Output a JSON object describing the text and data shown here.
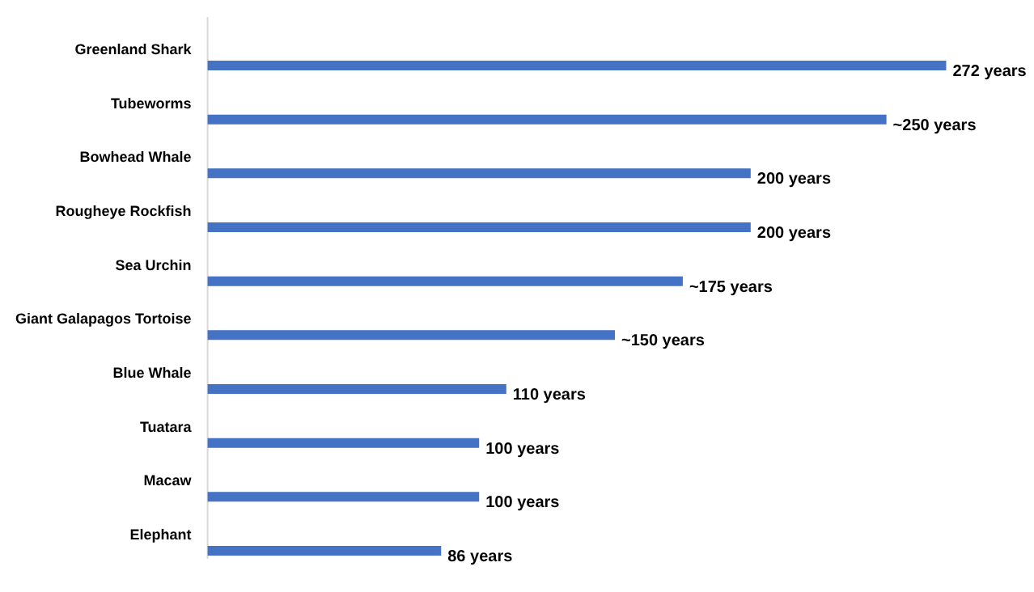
{
  "chart_data": {
    "type": "bar",
    "orientation": "horizontal",
    "categories": [
      "Greenland Shark",
      "Tubeworms",
      "Bowhead Whale",
      "Rougheye Rockfish",
      "Sea Urchin",
      "Giant Galapagos Tortoise",
      "Blue Whale",
      "Tuatara",
      "Macaw",
      "Elephant"
    ],
    "values": [
      272,
      250,
      200,
      200,
      175,
      150,
      110,
      100,
      100,
      86
    ],
    "value_labels": [
      "272 years",
      "~250 years",
      "200 years",
      "200 years",
      "~175 years",
      "~150 years",
      "110 years",
      "100 years",
      "100 years",
      "86 years"
    ],
    "color": "#4472c4",
    "grid": false
  }
}
